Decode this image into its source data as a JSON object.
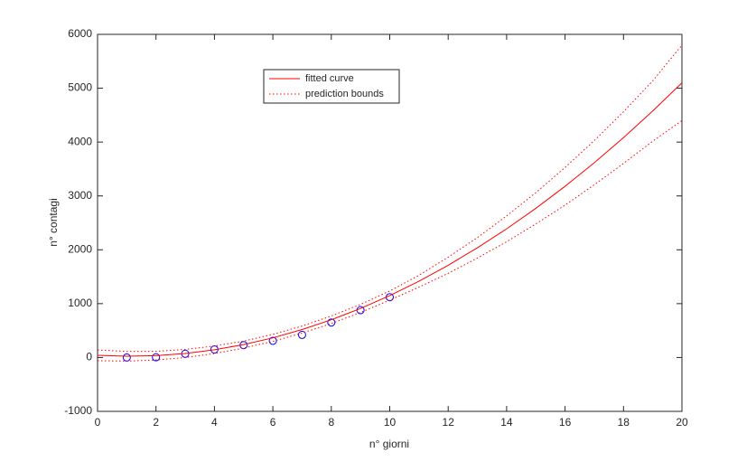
{
  "chart_data": {
    "type": "line",
    "xlabel": "n°  giorni",
    "ylabel": "n° contagi",
    "x": [
      0,
      1,
      2,
      3,
      4,
      5,
      6,
      7,
      8,
      9,
      10,
      11,
      12,
      13,
      14,
      15,
      16,
      17,
      18,
      19,
      20
    ],
    "series": [
      {
        "color": "#0000ff",
        "marker": "circle",
        "line": "none",
        "x": [
          1,
          2,
          3,
          4,
          5,
          6,
          7,
          8,
          9,
          10
        ],
        "values": [
          0,
          5,
          70,
          150,
          230,
          310,
          420,
          650,
          880,
          1120
        ]
      },
      {
        "name": "fitted curve",
        "color": "#ff0000",
        "line": "solid",
        "values": [
          40,
          23,
          35,
          75,
          143,
          240,
          365,
          519,
          701,
          911,
          1150,
          1417,
          1713,
          2037,
          2389,
          2770,
          3179,
          3617,
          4083,
          4577,
          5100
        ]
      },
      {
        "name": "prediction bounds",
        "color": "#ff0000",
        "line": "dotted",
        "values": [
          140,
          113,
          115,
          150,
          213,
          305,
          430,
          584,
          771,
          986,
          1235,
          1527,
          1863,
          2227,
          2629,
          3060,
          3529,
          4027,
          4563,
          5137,
          5800
        ],
        "lower": [
          -60,
          -67,
          -45,
          0,
          73,
          175,
          300,
          454,
          631,
          836,
          1065,
          1307,
          1563,
          1847,
          2149,
          2480,
          2829,
          3207,
          3603,
          4017,
          4400
        ]
      }
    ],
    "xlim": [
      0,
      20
    ],
    "ylim": [
      -1000,
      6000
    ],
    "xticks": [
      0,
      2,
      4,
      6,
      8,
      10,
      12,
      14,
      16,
      18,
      20
    ],
    "yticks": [
      -1000,
      0,
      1000,
      2000,
      3000,
      4000,
      5000,
      6000
    ],
    "grid": false
  }
}
